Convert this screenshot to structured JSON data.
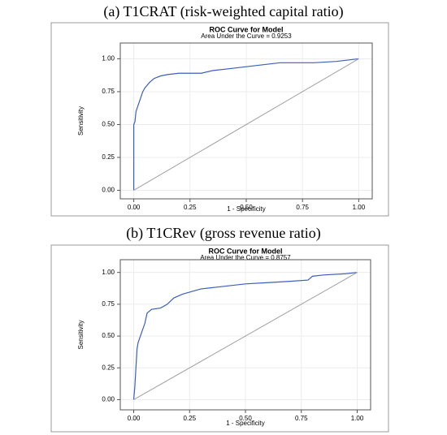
{
  "chart_data": [
    {
      "type": "line",
      "caption": "(a) T1CRAT (risk-weighted capital ratio)",
      "title": "ROC Curve for Model",
      "subtitle": "Area Under the Curve = 0.9253",
      "x_label": "1 - Specificity",
      "y_label": "Sensitivity",
      "grid": true,
      "xlim": [
        -0.06,
        1.06
      ],
      "ylim": [
        -0.065,
        1.12
      ],
      "xticks": [
        {
          "value": 0,
          "label": "0.00"
        },
        {
          "value": 0.25,
          "label": "0.25"
        },
        {
          "value": 0.5,
          "label": "0.50"
        },
        {
          "value": 0.75,
          "label": "0.75"
        },
        {
          "value": 1,
          "label": "1.00"
        }
      ],
      "yticks": [
        {
          "value": 0,
          "label": "0.00"
        },
        {
          "value": 0.25,
          "label": "0.25"
        },
        {
          "value": 0.5,
          "label": "0.50"
        },
        {
          "value": 0.75,
          "label": "0.75"
        },
        {
          "value": 1,
          "label": "1.00"
        }
      ],
      "series": [
        {
          "color": "#3b5fc0",
          "x": [
            0,
            0,
            0.005,
            0.01,
            0.02,
            0.03,
            0.04,
            0.05,
            0.07,
            0.09,
            0.12,
            0.15,
            0.2,
            0.3,
            0.35,
            0.45,
            0.55,
            0.65,
            0.8,
            0.9,
            0.95,
            1
          ],
          "values": [
            0,
            0.5,
            0.52,
            0.6,
            0.65,
            0.7,
            0.75,
            0.78,
            0.82,
            0.85,
            0.87,
            0.88,
            0.89,
            0.89,
            0.91,
            0.93,
            0.95,
            0.97,
            0.97,
            0.98,
            0.99,
            1
          ]
        },
        {
          "color": "#a0a0a0",
          "x": [
            0,
            1
          ],
          "values": [
            0,
            1
          ]
        }
      ]
    },
    {
      "type": "line",
      "caption": "(b) T1CRev (gross revenue ratio)",
      "title": "ROC Curve for Model",
      "subtitle": "Area Under the Curve = 0.8757",
      "x_label": "1 - Specificity",
      "y_label": "Sensitivity",
      "grid": true,
      "xlim": [
        -0.06,
        1.06
      ],
      "ylim": [
        -0.08,
        1.1
      ],
      "xticks": [
        {
          "value": 0,
          "label": "0.00"
        },
        {
          "value": 0.25,
          "label": "0.25"
        },
        {
          "value": 0.5,
          "label": "0.50"
        },
        {
          "value": 0.75,
          "label": "0.75"
        },
        {
          "value": 1,
          "label": "1.00"
        }
      ],
      "yticks": [
        {
          "value": 0,
          "label": "0.00"
        },
        {
          "value": 0.25,
          "label": "0.25"
        },
        {
          "value": 0.5,
          "label": "0.50"
        },
        {
          "value": 0.75,
          "label": "0.75"
        },
        {
          "value": 1,
          "label": "1.00"
        }
      ],
      "series": [
        {
          "color": "#3b5fc0",
          "x": [
            0,
            0.005,
            0.01,
            0.015,
            0.02,
            0.03,
            0.04,
            0.05,
            0.06,
            0.08,
            0.12,
            0.15,
            0.18,
            0.22,
            0.3,
            0.4,
            0.5,
            0.6,
            0.7,
            0.78,
            0.8,
            0.85,
            0.95,
            1
          ],
          "values": [
            0,
            0.1,
            0.25,
            0.4,
            0.45,
            0.5,
            0.55,
            0.6,
            0.68,
            0.71,
            0.72,
            0.75,
            0.8,
            0.83,
            0.87,
            0.89,
            0.91,
            0.92,
            0.93,
            0.94,
            0.97,
            0.98,
            0.99,
            1
          ]
        },
        {
          "color": "#a0a0a0",
          "x": [
            0,
            1
          ],
          "values": [
            0,
            1
          ]
        }
      ]
    }
  ]
}
